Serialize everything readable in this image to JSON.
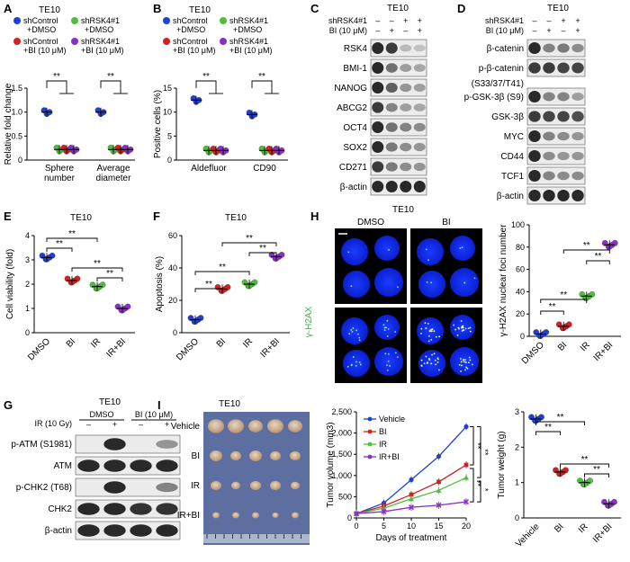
{
  "panels": {
    "A": {
      "letter": "A",
      "title": "TE10"
    },
    "B": {
      "letter": "B",
      "title": "TE10"
    },
    "C": {
      "letter": "C",
      "title": "TE10"
    },
    "D": {
      "letter": "D",
      "title": "TE10"
    },
    "E": {
      "letter": "E",
      "title": "TE10"
    },
    "F": {
      "letter": "F",
      "title": "TE10"
    },
    "G": {
      "letter": "G",
      "title": "TE10"
    },
    "H": {
      "letter": "H",
      "title": "TE10"
    },
    "I": {
      "letter": "I",
      "title": "TE10"
    }
  },
  "legend_ab": {
    "items": [
      {
        "line1": "shControl",
        "line2": "+DMSO",
        "color": "#1f3fd6"
      },
      {
        "line1": "shRSK4#1",
        "line2": "+DMSO",
        "color": "#4fbf3a"
      },
      {
        "line1": "shControl",
        "line2": "+BI (10 μM)",
        "color": "#d42020"
      },
      {
        "line1": "shRSK4#1",
        "line2": "+BI (10 μM)",
        "color": "#8a2fc9"
      }
    ]
  },
  "sig": {
    "two": "**",
    "one": "*"
  },
  "colors": {
    "blue": "#1f3fd6",
    "red": "#d42020",
    "green": "#4fbf3a",
    "purple": "#8a2fc9"
  },
  "chart_data": [
    {
      "panel": "A",
      "type": "scatter",
      "ylabel": "Relative fold change",
      "ylim": [
        0,
        1.5
      ],
      "yticks": [
        "0",
        "0.5",
        "1.0",
        "1.5"
      ],
      "categories": [
        "Sphere number",
        "Average diameter"
      ],
      "series_values": [
        [
          1.0,
          0.22,
          0.22,
          0.22
        ],
        [
          1.0,
          0.22,
          0.22,
          0.22
        ]
      ]
    },
    {
      "panel": "B",
      "type": "scatter",
      "ylabel": "Positive cells (%)",
      "ylim": [
        0,
        15
      ],
      "yticks": [
        "0",
        "5",
        "10",
        "15"
      ],
      "categories": [
        "Aldefluor",
        "CD90"
      ],
      "series_values": [
        [
          12.5,
          2.0,
          2.0,
          2.0
        ],
        [
          9.5,
          2.0,
          2.0,
          2.0
        ]
      ]
    },
    {
      "panel": "E",
      "type": "scatter",
      "ylabel": "Cell viability (fold)",
      "ylim": [
        0,
        4
      ],
      "yticks": [
        "0",
        "1",
        "2",
        "3",
        "4"
      ],
      "categories": [
        "DMSO",
        "BI",
        "IR",
        "IR+BI"
      ],
      "values": [
        3.1,
        2.15,
        1.9,
        1.0
      ]
    },
    {
      "panel": "F",
      "type": "scatter",
      "ylabel": "Apoptosis (%)",
      "ylim": [
        0,
        60
      ],
      "yticks": [
        "0",
        "20",
        "40",
        "60"
      ],
      "categories": [
        "DMSO",
        "BI",
        "IR",
        "IR+BI"
      ],
      "values": [
        8,
        27,
        30,
        47
      ]
    },
    {
      "panel": "H",
      "type": "scatter",
      "ylabel": "γ-H2AX nuclear foci number",
      "ylim": [
        0,
        100
      ],
      "yticks": [
        "0",
        "20",
        "40",
        "60",
        "80",
        "100"
      ],
      "categories": [
        "DMSO",
        "BI",
        "IR",
        "IR+BI"
      ],
      "values": [
        2,
        9,
        36,
        82
      ]
    },
    {
      "panel": "I-volume",
      "type": "line",
      "ylabel": "Tumor volume (mm3)",
      "xlabel": "Days of treatment",
      "ylim": [
        0,
        2500
      ],
      "yticks": [
        "0",
        "500",
        "1,000",
        "1,500",
        "2,000",
        "2,500"
      ],
      "xlim": [
        0,
        20
      ],
      "xticks": [
        "0",
        "5",
        "10",
        "15",
        "20"
      ],
      "x": [
        0,
        5,
        10,
        15,
        20
      ],
      "series": [
        {
          "name": "Vehicle",
          "values": [
            100,
            350,
            900,
            1450,
            2150
          ]
        },
        {
          "name": "BI",
          "values": [
            100,
            280,
            550,
            850,
            1250
          ]
        },
        {
          "name": "IR",
          "values": [
            100,
            230,
            450,
            650,
            950
          ]
        },
        {
          "name": "IR+BI",
          "values": [
            100,
            150,
            250,
            300,
            380
          ]
        }
      ]
    },
    {
      "panel": "I-weight",
      "type": "scatter",
      "ylabel": "Tumor weight (g)",
      "ylim": [
        0,
        3
      ],
      "yticks": [
        "0",
        "1",
        "2",
        "3"
      ],
      "categories": [
        "Vehicle",
        "BI",
        "IR",
        "IR+BI"
      ],
      "values": [
        2.8,
        1.3,
        1.0,
        0.4
      ]
    }
  ],
  "blot_c": {
    "rows": [
      "shRSK4#1",
      "BI (10 μM)"
    ],
    "signs": [
      [
        "–",
        "–",
        "+",
        "+"
      ],
      [
        "–",
        "+",
        "–",
        "+"
      ]
    ],
    "bands": [
      "RSK4",
      "BMI-1",
      "NANOG",
      "ABCG2",
      "OCT4",
      "SOX2",
      "CD271",
      "β-actin"
    ]
  },
  "blot_d": {
    "rows": [
      "shRSK4#1",
      "BI (10 μM)"
    ],
    "signs": [
      [
        "–",
        "–",
        "+",
        "+"
      ],
      [
        "–",
        "+",
        "–",
        "+"
      ]
    ],
    "bands": [
      "β-catenin",
      "p-β-catenin",
      "(S33/37/T41)",
      "p-GSK-3β (S9)",
      "GSK-3β",
      "MYC",
      "CD44",
      "TCF1",
      "β-actin"
    ]
  },
  "blot_g": {
    "treat": "IR (10 Gy)",
    "groups": [
      "DMSO",
      "BI (10 μM)"
    ],
    "signs": [
      "–",
      "+",
      "–",
      "+"
    ],
    "bands": [
      "p-ATM (S1981)",
      "ATM",
      "p-CHK2 (T68)",
      "CHK2",
      "β-actin"
    ]
  },
  "micro": {
    "labels": [
      "DMSO",
      "BI",
      "IR",
      "IR+BI"
    ],
    "stain": "γ-H2AX"
  },
  "tumors": {
    "rows": [
      "Vehicle",
      "BI",
      "IR",
      "IR+BI"
    ]
  }
}
